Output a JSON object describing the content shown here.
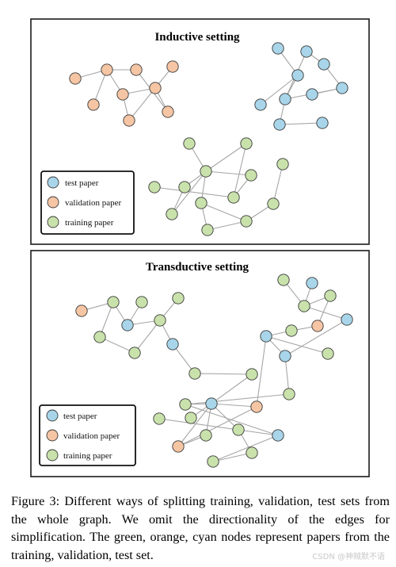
{
  "colors": {
    "test": "#a8d5e9",
    "validation": "#f5c5a4",
    "training": "#c9e2ac",
    "edge": "#a6a6a6",
    "frame": "#1a1a1a"
  },
  "legend": [
    {
      "type": "test",
      "label": "test paper"
    },
    {
      "type": "validation",
      "label": "validation paper"
    },
    {
      "type": "training",
      "label": "training paper"
    }
  ],
  "panels": [
    {
      "title": "Inductive setting",
      "nodes": [
        {
          "id": "a1",
          "type": "validation"
        },
        {
          "id": "a2",
          "type": "validation"
        },
        {
          "id": "a3",
          "type": "validation"
        },
        {
          "id": "a4",
          "type": "validation"
        },
        {
          "id": "a5",
          "type": "validation"
        },
        {
          "id": "a6",
          "type": "validation"
        },
        {
          "id": "a7",
          "type": "validation"
        },
        {
          "id": "a8",
          "type": "validation"
        },
        {
          "id": "a9",
          "type": "validation"
        },
        {
          "id": "b1",
          "type": "test"
        },
        {
          "id": "b2",
          "type": "test"
        },
        {
          "id": "b3",
          "type": "test"
        },
        {
          "id": "b4",
          "type": "test"
        },
        {
          "id": "b5",
          "type": "test"
        },
        {
          "id": "b6",
          "type": "test"
        },
        {
          "id": "b7",
          "type": "test"
        },
        {
          "id": "b8",
          "type": "test"
        },
        {
          "id": "b9",
          "type": "test"
        },
        {
          "id": "b10",
          "type": "test"
        },
        {
          "id": "c1",
          "type": "training"
        },
        {
          "id": "c2",
          "type": "training"
        },
        {
          "id": "c3",
          "type": "training"
        },
        {
          "id": "c4",
          "type": "training"
        },
        {
          "id": "c5",
          "type": "training"
        },
        {
          "id": "c6",
          "type": "training"
        },
        {
          "id": "c7",
          "type": "training"
        },
        {
          "id": "c8",
          "type": "training"
        },
        {
          "id": "c9",
          "type": "training"
        },
        {
          "id": "c10",
          "type": "training"
        },
        {
          "id": "c11",
          "type": "training"
        },
        {
          "id": "c12",
          "type": "training"
        },
        {
          "id": "c13",
          "type": "training"
        }
      ],
      "edges": [
        [
          "a1",
          "a3"
        ],
        [
          "a2",
          "a3"
        ],
        [
          "a3",
          "a4"
        ],
        [
          "a3",
          "a6"
        ],
        [
          "a4",
          "a5"
        ],
        [
          "a4",
          "a7"
        ],
        [
          "a5",
          "a7"
        ],
        [
          "a6",
          "a8"
        ],
        [
          "a7",
          "a8"
        ],
        [
          "a7",
          "a9"
        ],
        [
          "b1",
          "b3"
        ],
        [
          "b2",
          "b3"
        ],
        [
          "b3",
          "b5"
        ],
        [
          "b4",
          "b6"
        ],
        [
          "b4",
          "b5"
        ],
        [
          "b5",
          "b8"
        ],
        [
          "b5",
          "b9"
        ],
        [
          "b6",
          "b9"
        ],
        [
          "b7",
          "b9"
        ],
        [
          "b8",
          "b10"
        ],
        [
          "c1",
          "c3"
        ],
        [
          "c2",
          "c3"
        ],
        [
          "c2",
          "c5"
        ],
        [
          "c3",
          "c4"
        ],
        [
          "c3",
          "c5"
        ],
        [
          "c3",
          "c6"
        ],
        [
          "c3",
          "c7"
        ],
        [
          "c4",
          "c9"
        ],
        [
          "c6",
          "c9"
        ],
        [
          "c7",
          "c10"
        ],
        [
          "c7",
          "c11"
        ],
        [
          "c8",
          "c9"
        ],
        [
          "c10",
          "c11"
        ],
        [
          "c11",
          "c12"
        ],
        [
          "c12",
          "c13"
        ]
      ]
    },
    {
      "title": "Transductive setting",
      "nodes": [
        {
          "id": "d1",
          "type": "validation"
        },
        {
          "id": "d2",
          "type": "training"
        },
        {
          "id": "d3",
          "type": "training"
        },
        {
          "id": "d4",
          "type": "training"
        },
        {
          "id": "d5",
          "type": "test"
        },
        {
          "id": "d6",
          "type": "training"
        },
        {
          "id": "d7",
          "type": "training"
        },
        {
          "id": "d8",
          "type": "training"
        },
        {
          "id": "d9",
          "type": "test"
        },
        {
          "id": "d10",
          "type": "training"
        },
        {
          "id": "e1",
          "type": "training"
        },
        {
          "id": "e2",
          "type": "test"
        },
        {
          "id": "e3",
          "type": "training"
        },
        {
          "id": "e4",
          "type": "training"
        },
        {
          "id": "e5",
          "type": "validation"
        },
        {
          "id": "e6",
          "type": "test"
        },
        {
          "id": "e7",
          "type": "training"
        },
        {
          "id": "e8",
          "type": "test"
        },
        {
          "id": "e9",
          "type": "test"
        },
        {
          "id": "e10",
          "type": "training"
        },
        {
          "id": "e11",
          "type": "training"
        },
        {
          "id": "f1",
          "type": "training"
        },
        {
          "id": "f2",
          "type": "training"
        },
        {
          "id": "f3",
          "type": "test"
        },
        {
          "id": "f4",
          "type": "training"
        },
        {
          "id": "f5",
          "type": "validation"
        },
        {
          "id": "f6",
          "type": "training"
        },
        {
          "id": "f7",
          "type": "validation"
        },
        {
          "id": "f8",
          "type": "training"
        },
        {
          "id": "f9",
          "type": "training"
        },
        {
          "id": "f10",
          "type": "training"
        },
        {
          "id": "f11",
          "type": "test"
        },
        {
          "id": "f12",
          "type": "training"
        }
      ],
      "edges": [
        [
          "d1",
          "d3"
        ],
        [
          "d2",
          "d3"
        ],
        [
          "d3",
          "d5"
        ],
        [
          "d5",
          "d6"
        ],
        [
          "d2",
          "d4"
        ],
        [
          "d4",
          "d7"
        ],
        [
          "d5",
          "d7"
        ],
        [
          "d7",
          "d8"
        ],
        [
          "d7",
          "d9"
        ],
        [
          "d9",
          "d10"
        ],
        [
          "e1",
          "e3"
        ],
        [
          "e2",
          "e3"
        ],
        [
          "e3",
          "e4"
        ],
        [
          "e3",
          "e6"
        ],
        [
          "e4",
          "e5"
        ],
        [
          "e5",
          "e7"
        ],
        [
          "e6",
          "e9"
        ],
        [
          "e7",
          "e8"
        ],
        [
          "e8",
          "e9"
        ],
        [
          "e9",
          "e10"
        ],
        [
          "e8",
          "e11"
        ],
        [
          "d10",
          "f4"
        ],
        [
          "f4",
          "f3"
        ],
        [
          "f3",
          "f2"
        ],
        [
          "f3",
          "f7"
        ],
        [
          "f3",
          "f6"
        ],
        [
          "f3",
          "f5"
        ],
        [
          "f3",
          "f8"
        ],
        [
          "f3",
          "f12"
        ],
        [
          "f5",
          "f7"
        ],
        [
          "f6",
          "f7"
        ],
        [
          "f8",
          "f9"
        ],
        [
          "f9",
          "f10"
        ],
        [
          "f10",
          "f11"
        ],
        [
          "f11",
          "f12"
        ],
        [
          "f11",
          "f1"
        ],
        [
          "f5",
          "e8"
        ],
        [
          "f12",
          "e10"
        ]
      ]
    }
  ],
  "caption": "Figure 3: Different ways of splitting training, validation, test sets from the whole graph. We omit the directionality of the edges for simplification. The green, orange, cyan nodes represent papers from the training, validation, test set.",
  "watermark": "CSDN @神贼默不语"
}
